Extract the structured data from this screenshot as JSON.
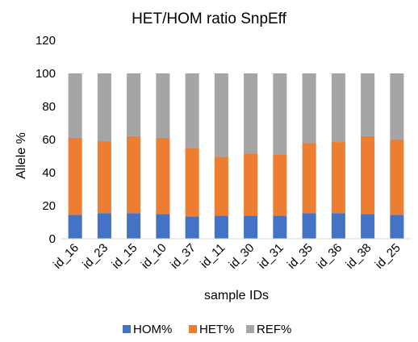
{
  "chart_data": {
    "type": "bar",
    "stacked": true,
    "title": "HET/HOM ratio SnpEff",
    "xlabel": "sample IDs",
    "ylabel": "Allele %",
    "ylim": [
      0,
      120
    ],
    "yticks": [
      0,
      20,
      40,
      60,
      80,
      100,
      120
    ],
    "grid": false,
    "legend_position": "bottom",
    "categories": [
      "id_16",
      "id_23",
      "id_15",
      "id_10",
      "id_37",
      "id_11",
      "id_30",
      "id_31",
      "id_35",
      "id_36",
      "id_38",
      "id_25"
    ],
    "series": [
      {
        "name": "HOM%",
        "color": "#4472C4",
        "values": [
          14.5,
          15.5,
          15.5,
          15,
          13.5,
          14,
          14,
          14,
          15.5,
          15.5,
          15,
          14.5
        ]
      },
      {
        "name": "HET%",
        "color": "#ED7D31",
        "values": [
          46.5,
          43.5,
          46.5,
          46,
          41.5,
          35.5,
          37.5,
          37,
          42.5,
          43,
          47,
          45.5
        ]
      },
      {
        "name": "REF%",
        "color": "#A5A5A5",
        "values": [
          39,
          41,
          38,
          39,
          45,
          50.5,
          48.5,
          49,
          42,
          41.5,
          38,
          40
        ]
      }
    ]
  }
}
